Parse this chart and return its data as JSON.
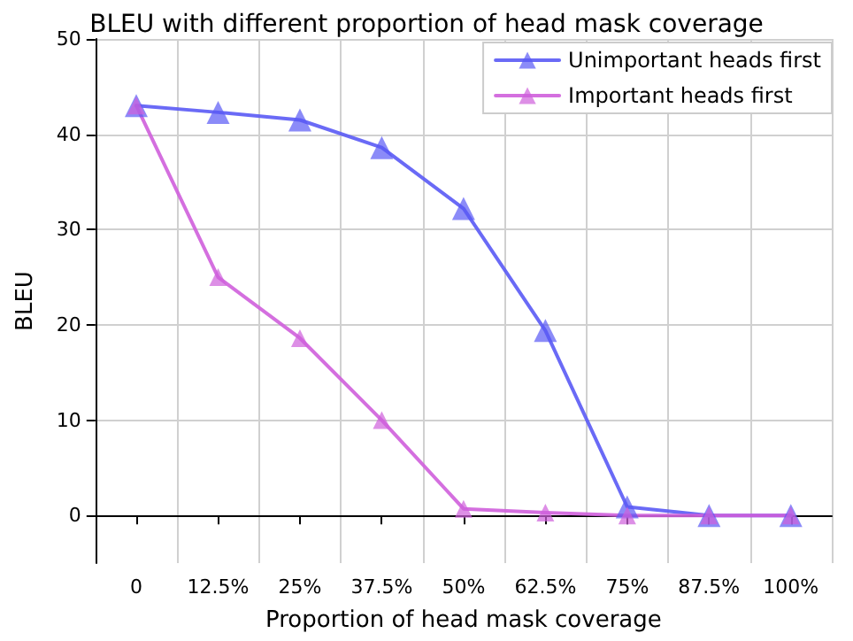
{
  "chart_data": {
    "type": "line",
    "title": "BLEU with different proportion of head mask coverage",
    "xlabel": "Proportion of head mask coverage",
    "ylabel": "BLEU",
    "categories": [
      "0",
      "12.5%",
      "25%",
      "37.5%",
      "50%",
      "62.5%",
      "75%",
      "87.5%",
      "100%"
    ],
    "series": [
      {
        "name": "Unimportant heads first",
        "color": "#5a5af5",
        "values": [
          43,
          42.3,
          41.5,
          38.6,
          32.2,
          19.4,
          0.9,
          0,
          0
        ]
      },
      {
        "name": "Important heads first",
        "color": "#cf5fdb",
        "values": [
          43,
          25,
          18.6,
          10,
          0.7,
          0.3,
          0,
          0,
          0
        ]
      }
    ],
    "ylim": [
      -5,
      50
    ],
    "yticks": [
      0,
      10,
      20,
      30,
      40,
      50
    ],
    "grid": true,
    "legend": "top right",
    "marker": "triangle",
    "line_style": "solid"
  }
}
